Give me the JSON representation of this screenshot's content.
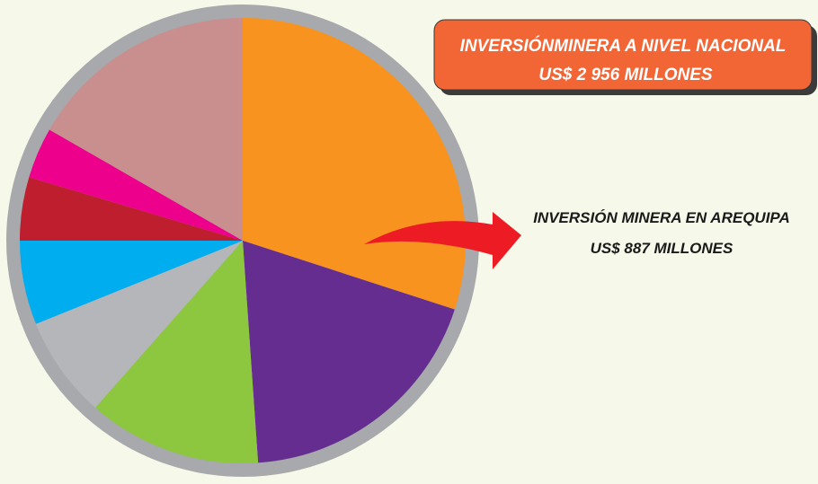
{
  "chart_data": {
    "type": "pie",
    "title": "INVERSIÓNMINERA A NIVEL NACIONAL",
    "subtitle": "US$ 2 956 MILLONES",
    "annotations": [
      "INVERSIÓN MINERA EN  AREQUIPA",
      "US$ 887 MILLONES"
    ],
    "categories": [
      null,
      null,
      null,
      null,
      null,
      null,
      null,
      null
    ],
    "values": [
      30,
      18.9,
      12.6,
      7.4,
      6.1,
      4.6,
      3.7,
      16.7
    ],
    "colors": [
      "#f7931e",
      "#662d91",
      "#8dc63f",
      "#b4b6b9",
      "#00aeef",
      "#be1e2d",
      "#ec008c",
      "#c98f8f"
    ]
  }
}
